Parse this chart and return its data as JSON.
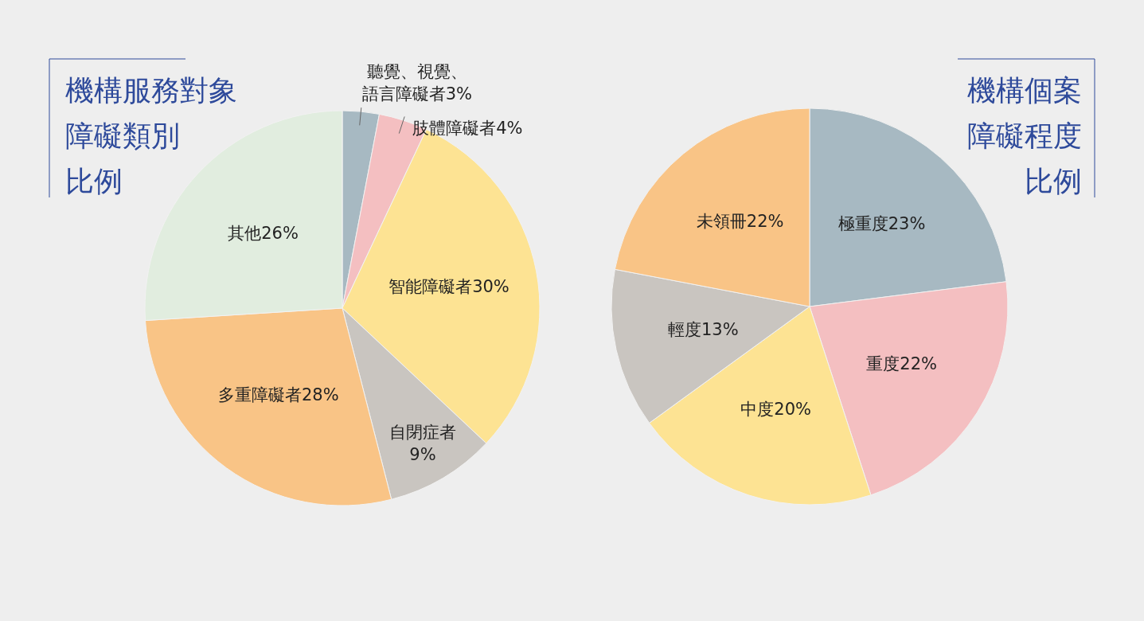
{
  "chart_data": [
    {
      "type": "pie",
      "title": "機構服務對象障礙類別比例",
      "categories": [
        "聽覺、視覺、語言障礙者",
        "肢體障礙者",
        "智能障礙者",
        "自閉症者",
        "多重障礙者",
        "其他"
      ],
      "values": [
        3,
        4,
        30,
        9,
        28,
        26
      ],
      "value_labels": [
        "3%",
        "4%",
        "30%",
        "9%",
        "28%",
        "26%"
      ],
      "colors": [
        "#a7b9c2",
        "#f4bfc1",
        "#fde393",
        "#c9c5c0",
        "#f9c486",
        "#e1eddf"
      ]
    },
    {
      "type": "pie",
      "title": "機構個案障礙程度比例",
      "categories": [
        "極重度",
        "重度",
        "中度",
        "輕度",
        "未領冊"
      ],
      "values": [
        23,
        22,
        20,
        13,
        22
      ],
      "value_labels": [
        "23%",
        "22%",
        "20%",
        "13%",
        "22%"
      ],
      "colors": [
        "#a7b9c2",
        "#f4bfc1",
        "#fde393",
        "#c9c5c0",
        "#f9c486"
      ]
    }
  ]
}
